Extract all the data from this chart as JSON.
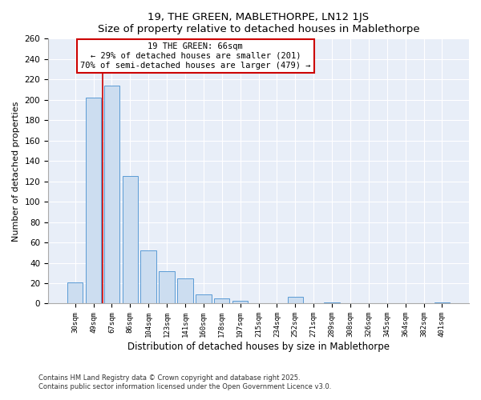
{
  "title": "19, THE GREEN, MABLETHORPE, LN12 1JS",
  "subtitle": "Size of property relative to detached houses in Mablethorpe",
  "bar_labels": [
    "30sqm",
    "49sqm",
    "67sqm",
    "86sqm",
    "104sqm",
    "123sqm",
    "141sqm",
    "160sqm",
    "178sqm",
    "197sqm",
    "215sqm",
    "234sqm",
    "252sqm",
    "271sqm",
    "289sqm",
    "308sqm",
    "326sqm",
    "345sqm",
    "364sqm",
    "382sqm",
    "401sqm"
  ],
  "bar_values": [
    21,
    202,
    214,
    125,
    52,
    32,
    25,
    9,
    5,
    3,
    0,
    0,
    7,
    0,
    1,
    0,
    0,
    0,
    0,
    0,
    1
  ],
  "bar_color": "#ccddf0",
  "bar_edge_color": "#5b9bd5",
  "marker_line_index": 2,
  "marker_line_color": "#cc0000",
  "ylabel": "Number of detached properties",
  "xlabel": "Distribution of detached houses by size in Mablethorpe",
  "ylim": [
    0,
    260
  ],
  "yticks": [
    0,
    20,
    40,
    60,
    80,
    100,
    120,
    140,
    160,
    180,
    200,
    220,
    240,
    260
  ],
  "annotation_title": "19 THE GREEN: 66sqm",
  "annotation_line1": "← 29% of detached houses are smaller (201)",
  "annotation_line2": "70% of semi-detached houses are larger (479) →",
  "annotation_box_color": "#ffffff",
  "annotation_box_edge": "#cc0000",
  "footer_line1": "Contains HM Land Registry data © Crown copyright and database right 2025.",
  "footer_line2": "Contains public sector information licensed under the Open Government Licence v3.0.",
  "bg_color": "#ffffff",
  "plot_bg_color": "#e8eef8",
  "grid_color": "#ffffff"
}
